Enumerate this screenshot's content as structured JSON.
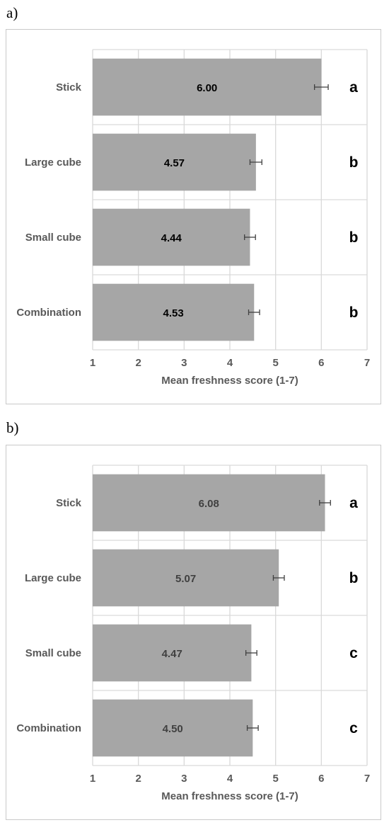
{
  "chart_data": [
    {
      "panel": "a)",
      "type": "bar",
      "orientation": "horizontal",
      "categories": [
        "Stick",
        "Large cube",
        "Small cube",
        "Combination"
      ],
      "values": [
        6.0,
        4.57,
        4.44,
        4.53
      ],
      "value_labels": [
        "6.00",
        "4.57",
        "4.44",
        "4.53"
      ],
      "error": [
        0.15,
        0.13,
        0.12,
        0.12
      ],
      "significance_letters": [
        "a",
        "b",
        "b",
        "b"
      ],
      "xlabel": "Mean freshness score (1-7)",
      "xlim": [
        1,
        7
      ],
      "xticks": [
        "1",
        "2",
        "3",
        "4",
        "5",
        "6",
        "7"
      ],
      "grid": true,
      "colors": {
        "bar": "#a6a6a6",
        "grid": "#d9d9d9"
      }
    },
    {
      "panel": "b)",
      "type": "bar",
      "orientation": "horizontal",
      "categories": [
        "Stick",
        "Large cube",
        "Small cube",
        "Combination"
      ],
      "values": [
        6.08,
        5.07,
        4.47,
        4.5
      ],
      "value_labels": [
        "6.08",
        "5.07",
        "4.47",
        "4.50"
      ],
      "error": [
        0.12,
        0.12,
        0.12,
        0.12
      ],
      "significance_letters": [
        "a",
        "b",
        "c",
        "c"
      ],
      "xlabel": "Mean freshness score (1-7)",
      "xlim": [
        1,
        7
      ],
      "xticks": [
        "1",
        "2",
        "3",
        "4",
        "5",
        "6",
        "7"
      ],
      "grid": true,
      "colors": {
        "bar": "#a6a6a6",
        "grid": "#d9d9d9"
      }
    }
  ]
}
